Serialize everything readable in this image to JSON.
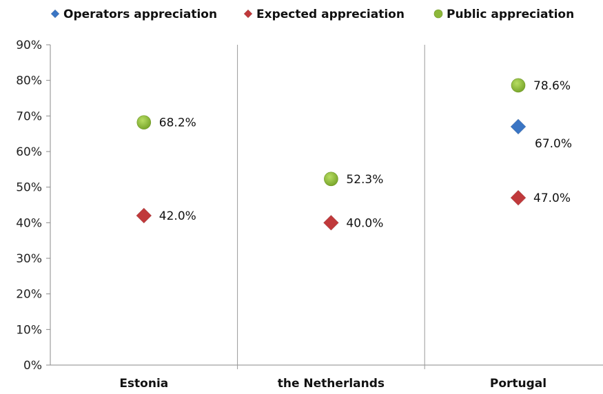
{
  "chart_data": {
    "type": "scatter",
    "categories": [
      "Estonia",
      "the Netherlands",
      "Portugal"
    ],
    "ylim": [
      0,
      90
    ],
    "yticks": [
      0,
      10,
      20,
      30,
      40,
      50,
      60,
      70,
      80,
      90
    ],
    "ytick_labels": [
      "0%",
      "10%",
      "20%",
      "30%",
      "40%",
      "50%",
      "60%",
      "70%",
      "80%",
      "90%"
    ],
    "legend_position": "top",
    "grid": false,
    "series": [
      {
        "name": "Operators appreciation",
        "marker": "diamond",
        "color": "#3A75C4",
        "values": [
          null,
          null,
          67.0
        ],
        "labels": [
          "",
          "",
          "67.0%"
        ]
      },
      {
        "name": "Expected appreciation",
        "marker": "diamond",
        "color": "#C0393B",
        "values": [
          42.0,
          40.0,
          47.0
        ],
        "labels": [
          "42.0%",
          "40.0%",
          "47.0%"
        ]
      },
      {
        "name": "Public appreciation",
        "marker": "circle",
        "color": "#8DB83A",
        "values": [
          68.2,
          52.3,
          78.6
        ],
        "labels": [
          "68.2%",
          "52.3%",
          "78.6%"
        ]
      }
    ]
  }
}
